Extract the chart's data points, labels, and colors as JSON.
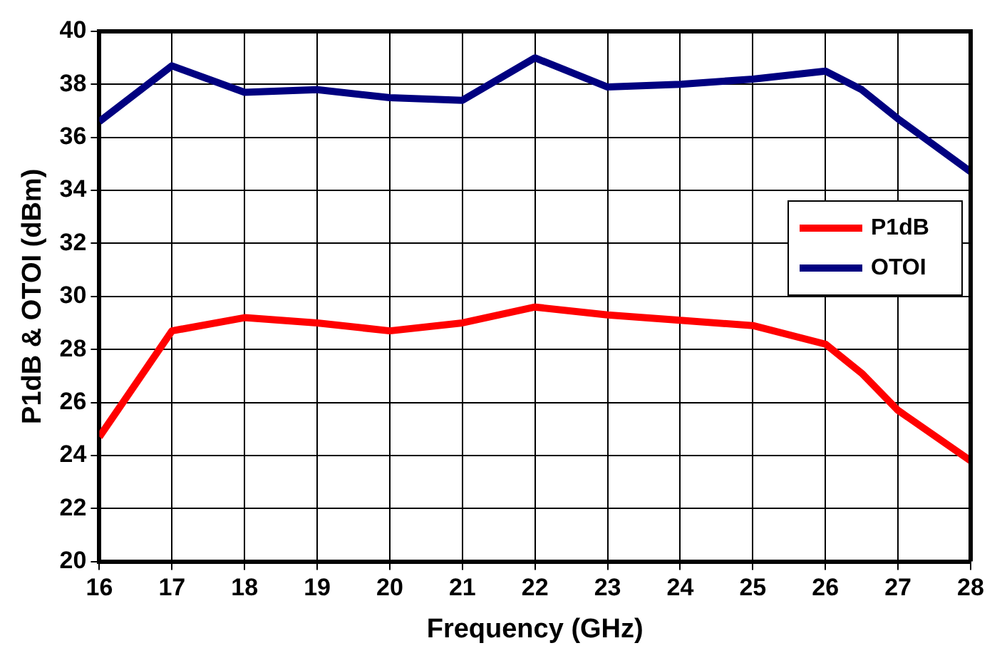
{
  "chart_data": {
    "type": "line",
    "xlabel": "Frequency (GHz)",
    "ylabel": "P1dB & OTOI (dBm)",
    "x": [
      16,
      17,
      18,
      19,
      20,
      21,
      22,
      23,
      24,
      25,
      26,
      26.5,
      27,
      28
    ],
    "series": [
      {
        "name": "P1dB",
        "color": "#ff0000",
        "values": [
          24.7,
          28.7,
          29.2,
          29.0,
          28.7,
          29.0,
          29.6,
          29.3,
          29.1,
          28.9,
          28.2,
          27.1,
          25.7,
          23.8
        ]
      },
      {
        "name": "OTOI",
        "color": "#000080",
        "values": [
          36.6,
          38.7,
          37.7,
          37.8,
          37.5,
          37.4,
          39.0,
          37.9,
          38.0,
          38.2,
          38.5,
          37.8,
          36.7,
          34.7
        ]
      }
    ],
    "xlim": [
      16,
      28
    ],
    "xticks": [
      16,
      17,
      18,
      19,
      20,
      21,
      22,
      23,
      24,
      25,
      26,
      27,
      28
    ],
    "ylim": [
      20,
      40
    ],
    "yticks": [
      20,
      22,
      24,
      26,
      28,
      30,
      32,
      34,
      36,
      38,
      40
    ],
    "grid": true,
    "legend": "right",
    "marker": "none",
    "line_style": "solid"
  }
}
